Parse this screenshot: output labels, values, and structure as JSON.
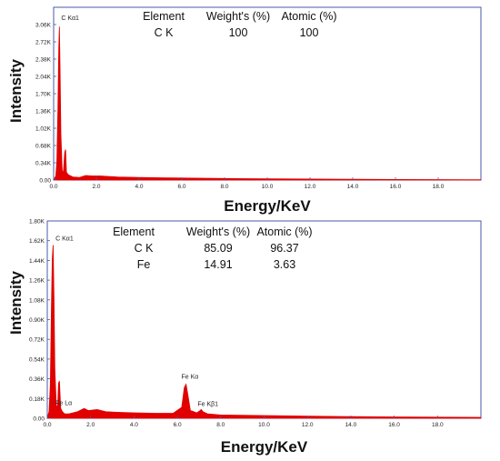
{
  "chart_data": [
    {
      "type": "area",
      "xlabel": "Energy/KeV",
      "ylabel": "Intensity",
      "xlim": [
        0,
        20
      ],
      "ylim": [
        0,
        3.4
      ],
      "x_ticks": [
        0,
        2,
        4,
        6,
        8,
        10,
        12,
        14,
        16,
        18
      ],
      "x_tick_labels": [
        "0.0",
        "2.0",
        "4.0",
        "6.0",
        "8.0",
        "10.0",
        "12.0",
        "14.0",
        "16.0",
        "18.0"
      ],
      "y_ticks": [
        0,
        0.34,
        0.68,
        1.02,
        1.36,
        1.7,
        2.04,
        2.38,
        2.72,
        3.06
      ],
      "y_tick_labels": [
        "0.00",
        "0.34K",
        "0.68K",
        "1.02K",
        "1.36K",
        "1.70K",
        "2.04K",
        "2.38K",
        "2.72K",
        "3.06K"
      ],
      "series_color": "#e00000",
      "spectrum": [
        [
          0.0,
          0.0
        ],
        [
          0.1,
          0.08
        ],
        [
          0.15,
          0.35
        ],
        [
          0.2,
          1.4
        ],
        [
          0.24,
          2.6
        ],
        [
          0.27,
          3.02
        ],
        [
          0.3,
          2.2
        ],
        [
          0.34,
          0.9
        ],
        [
          0.4,
          0.2
        ],
        [
          0.45,
          0.12
        ],
        [
          0.52,
          0.55
        ],
        [
          0.56,
          0.6
        ],
        [
          0.6,
          0.15
        ],
        [
          0.7,
          0.1
        ],
        [
          0.9,
          0.06
        ],
        [
          1.2,
          0.05
        ],
        [
          1.5,
          0.09
        ],
        [
          1.8,
          0.08
        ],
        [
          2.2,
          0.08
        ],
        [
          2.6,
          0.07
        ],
        [
          3.0,
          0.06
        ],
        [
          4.0,
          0.05
        ],
        [
          5.0,
          0.045
        ],
        [
          6.0,
          0.04
        ],
        [
          7.0,
          0.035
        ],
        [
          8.0,
          0.03
        ],
        [
          10.0,
          0.025
        ],
        [
          12.0,
          0.02
        ],
        [
          14.0,
          0.015
        ],
        [
          16.0,
          0.01
        ],
        [
          18.0,
          0.008
        ],
        [
          20.0,
          0.006
        ]
      ],
      "peak_labels": [
        {
          "label": "C  Kα1",
          "x": 0.27,
          "y": 3.15
        }
      ],
      "composition": {
        "headers": [
          "Element",
          "Weight's (%)",
          "Atomic (%)"
        ],
        "rows": [
          [
            "C K",
            "100",
            "100"
          ]
        ]
      }
    },
    {
      "type": "area",
      "xlabel": "Energy/KeV",
      "ylabel": "Intensity",
      "xlim": [
        0,
        20
      ],
      "ylim": [
        0,
        1.8
      ],
      "x_ticks": [
        0,
        2,
        4,
        6,
        8,
        10,
        12,
        14,
        16,
        18
      ],
      "x_tick_labels": [
        "0.0",
        "2.0",
        "4.0",
        "6.0",
        "8.0",
        "10.0",
        "12.0",
        "14.0",
        "16.0",
        "18.0"
      ],
      "y_ticks": [
        0,
        0.18,
        0.36,
        0.54,
        0.72,
        0.9,
        1.08,
        1.26,
        1.44,
        1.62,
        1.8
      ],
      "y_tick_labels": [
        "0.00",
        "0.18K",
        "0.36K",
        "0.54K",
        "0.72K",
        "0.90K",
        "1.08K",
        "1.26K",
        "1.44K",
        "1.62K",
        "1.80K"
      ],
      "series_color": "#e00000",
      "spectrum": [
        [
          0.0,
          0.0
        ],
        [
          0.08,
          0.06
        ],
        [
          0.14,
          0.3
        ],
        [
          0.19,
          1.0
        ],
        [
          0.23,
          1.45
        ],
        [
          0.27,
          1.58
        ],
        [
          0.31,
          1.1
        ],
        [
          0.35,
          0.45
        ],
        [
          0.42,
          0.1
        ],
        [
          0.48,
          0.12
        ],
        [
          0.52,
          0.32
        ],
        [
          0.56,
          0.34
        ],
        [
          0.62,
          0.09
        ],
        [
          0.7,
          0.06
        ],
        [
          0.8,
          0.04
        ],
        [
          1.0,
          0.04
        ],
        [
          1.4,
          0.06
        ],
        [
          1.7,
          0.09
        ],
        [
          1.9,
          0.07
        ],
        [
          2.3,
          0.08
        ],
        [
          2.7,
          0.06
        ],
        [
          3.2,
          0.055
        ],
        [
          4.0,
          0.05
        ],
        [
          5.0,
          0.045
        ],
        [
          5.8,
          0.045
        ],
        [
          6.2,
          0.1
        ],
        [
          6.32,
          0.28
        ],
        [
          6.4,
          0.31
        ],
        [
          6.48,
          0.22
        ],
        [
          6.6,
          0.07
        ],
        [
          6.9,
          0.05
        ],
        [
          7.05,
          0.07
        ],
        [
          7.1,
          0.08
        ],
        [
          7.18,
          0.06
        ],
        [
          7.4,
          0.04
        ],
        [
          8.0,
          0.03
        ],
        [
          10.0,
          0.025
        ],
        [
          12.0,
          0.02
        ],
        [
          14.0,
          0.015
        ],
        [
          16.0,
          0.012
        ],
        [
          18.0,
          0.01
        ],
        [
          20.0,
          0.008
        ]
      ],
      "peak_labels": [
        {
          "label": "C  Kα1",
          "x": 0.3,
          "y": 1.62
        },
        {
          "label": "Fe Lα",
          "x": 0.3,
          "y": 0.12
        },
        {
          "label": "Fe Kα",
          "x": 6.1,
          "y": 0.36
        },
        {
          "label": "Fe Kβ1",
          "x": 6.85,
          "y": 0.11
        }
      ],
      "composition": {
        "headers": [
          "Element",
          "Weight's (%)",
          "Atomic (%)"
        ],
        "rows": [
          [
            "C K",
            "85.09",
            "96.37"
          ],
          [
            "Fe",
            "14.91",
            "3.63"
          ]
        ]
      }
    }
  ]
}
